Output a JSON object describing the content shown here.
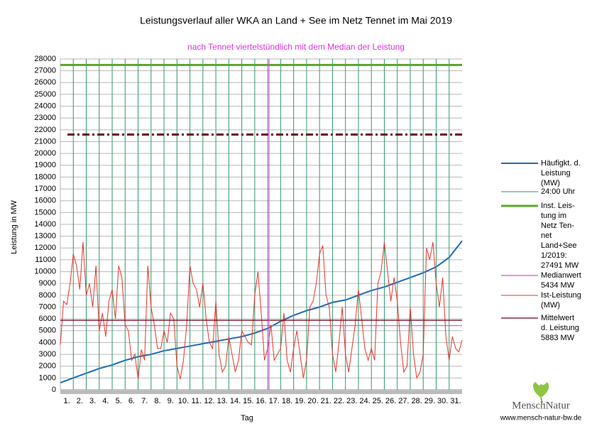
{
  "chart_data": {
    "type": "line",
    "title": "Leistungsverlauf aller WKA an Land + See im Netz Tennet im Mai 2019",
    "subtitle": "nach Tennet viertelstündlich mit dem Median der Leistung",
    "x_label": "Tag",
    "y_label": "Leistung in MW",
    "xlim": [
      0,
      31
    ],
    "ylim": [
      0,
      28000
    ],
    "yticks": [
      0,
      1000,
      2000,
      3000,
      4000,
      5000,
      6000,
      7000,
      8000,
      9000,
      10000,
      11000,
      12000,
      13000,
      14000,
      15000,
      16000,
      17000,
      18000,
      19000,
      20000,
      21000,
      22000,
      23000,
      24000,
      25000,
      26000,
      27000,
      28000
    ],
    "xticks": [
      {
        "value": 0.5,
        "label": "1."
      },
      {
        "value": 1.5,
        "label": "2."
      },
      {
        "value": 2.5,
        "label": "3."
      },
      {
        "value": 3.5,
        "label": "4."
      },
      {
        "value": 4.5,
        "label": "5."
      },
      {
        "value": 5.5,
        "label": "6."
      },
      {
        "value": 6.5,
        "label": "7."
      },
      {
        "value": 7.5,
        "label": "8."
      },
      {
        "value": 8.5,
        "label": "9."
      },
      {
        "value": 9.5,
        "label": "10."
      },
      {
        "value": 10.5,
        "label": "11."
      },
      {
        "value": 11.5,
        "label": "12."
      },
      {
        "value": 12.5,
        "label": "13."
      },
      {
        "value": 13.5,
        "label": "14."
      },
      {
        "value": 14.5,
        "label": "15."
      },
      {
        "value": 15.5,
        "label": "16."
      },
      {
        "value": 16.5,
        "label": "17."
      },
      {
        "value": 17.5,
        "label": "18."
      },
      {
        "value": 18.5,
        "label": "19."
      },
      {
        "value": 19.5,
        "label": "20."
      },
      {
        "value": 20.5,
        "label": "21."
      },
      {
        "value": 21.5,
        "label": "22."
      },
      {
        "value": 22.5,
        "label": "23."
      },
      {
        "value": 23.5,
        "label": "24."
      },
      {
        "value": 24.5,
        "label": "25."
      },
      {
        "value": 25.5,
        "label": "26."
      },
      {
        "value": 26.5,
        "label": "27."
      },
      {
        "value": 27.5,
        "label": "28."
      },
      {
        "value": 28.5,
        "label": "29."
      },
      {
        "value": 29.5,
        "label": "30."
      },
      {
        "value": 30.5,
        "label": "31."
      }
    ],
    "grid": true,
    "x": [
      0,
      0.25,
      0.5,
      0.75,
      1,
      1.25,
      1.5,
      1.75,
      2,
      2.25,
      2.5,
      2.75,
      3,
      3.25,
      3.5,
      3.75,
      4,
      4.25,
      4.5,
      4.75,
      5,
      5.25,
      5.5,
      5.75,
      6,
      6.25,
      6.5,
      6.75,
      7,
      7.25,
      7.5,
      7.75,
      8,
      8.25,
      8.5,
      8.75,
      9,
      9.25,
      9.5,
      9.75,
      10,
      10.25,
      10.5,
      10.75,
      11,
      11.25,
      11.5,
      11.75,
      12,
      12.25,
      12.5,
      12.75,
      13,
      13.25,
      13.5,
      13.75,
      14,
      14.25,
      14.5,
      14.75,
      15,
      15.25,
      15.5,
      15.75,
      16,
      16.25,
      16.5,
      16.75,
      17,
      17.25,
      17.5,
      17.75,
      18,
      18.25,
      18.5,
      18.75,
      19,
      19.25,
      19.5,
      19.75,
      20,
      20.25,
      20.5,
      20.75,
      21,
      21.25,
      21.5,
      21.75,
      22,
      22.25,
      22.5,
      22.75,
      23,
      23.25,
      23.5,
      23.75,
      24,
      24.25,
      24.5,
      24.75,
      25,
      25.25,
      25.5,
      25.75,
      26,
      26.25,
      26.5,
      26.75,
      27,
      27.25,
      27.5,
      27.75,
      28,
      28.25,
      28.5,
      28.75,
      29,
      29.25,
      29.5,
      29.75,
      30,
      30.25,
      30.5,
      30.75,
      31
    ],
    "series": [
      {
        "name": [
          "Häufigkt. d.",
          "Leistung",
          "(MW)"
        ],
        "color": "#1c6bb8",
        "x": [
          0,
          1,
          2,
          3,
          4,
          5,
          6,
          7,
          8,
          9,
          10,
          11,
          12,
          13,
          14,
          15,
          16,
          17,
          18,
          19,
          20,
          21,
          22,
          23,
          24,
          25,
          26,
          27,
          28,
          29,
          30,
          31
        ],
        "values": [
          600,
          1000,
          1400,
          1800,
          2100,
          2500,
          2800,
          3000,
          3300,
          3500,
          3700,
          3900,
          4100,
          4300,
          4500,
          4800,
          5200,
          5800,
          6300,
          6700,
          7000,
          7400,
          7600,
          8000,
          8400,
          8700,
          9100,
          9500,
          9900,
          10400,
          11200,
          12600
        ]
      },
      {
        "name": [
          "24:00 Uhr"
        ],
        "color": "#2f9a6b",
        "vlines": [
          1,
          2,
          3,
          4,
          5,
          6,
          7,
          8,
          9,
          10,
          11,
          12,
          13,
          14,
          15,
          16,
          17,
          18,
          19,
          20,
          21,
          22,
          23,
          24,
          25,
          26,
          27,
          28,
          29,
          30
        ]
      },
      {
        "name": [
          "Inst. Leis-",
          "tung im",
          "Netz Ten-",
          "net",
          "Land+See",
          "1/2019:",
          "27491 MW"
        ],
        "color": "#5ea82a",
        "hline": 27491
      },
      {
        "name": [
          "Medianwert",
          "5434 MW"
        ],
        "color": "#ee44ee",
        "hline": 5434
      },
      {
        "name": [
          "Ist-Leistung",
          "(MW)"
        ],
        "color": "#e8342a",
        "values": [
          3800,
          7500,
          7200,
          9000,
          11500,
          10500,
          8500,
          12500,
          8000,
          9000,
          7000,
          10500,
          5000,
          6500,
          4500,
          7500,
          8500,
          6000,
          10500,
          9500,
          5500,
          5000,
          2500,
          3000,
          900,
          3400,
          2500,
          10500,
          7000,
          5500,
          3500,
          3500,
          5000,
          4000,
          6500,
          6000,
          2000,
          900,
          2500,
          5500,
          10500,
          9000,
          8500,
          7000,
          9000,
          6000,
          4000,
          3500,
          7500,
          3000,
          1500,
          2000,
          4500,
          3000,
          1500,
          2500,
          5000,
          4500,
          4000,
          3800,
          8000,
          10000,
          6500,
          2500,
          3500,
          5500,
          2500,
          3000,
          3500,
          6500,
          2500,
          1500,
          3500,
          5000,
          3000,
          1000,
          2500,
          7000,
          7500,
          9000,
          11500,
          12200,
          8000,
          7000,
          3000,
          1500,
          4000,
          7000,
          3000,
          1500,
          3500,
          5500,
          8500,
          6000,
          3500,
          2500,
          3500,
          2500,
          9000,
          10000,
          12500,
          10000,
          7500,
          9500,
          7500,
          4000,
          1500,
          2000,
          7000,
          3000,
          1000,
          1500,
          3000,
          12000,
          11000,
          12500,
          9000,
          7000,
          9500,
          4500,
          2500,
          4500,
          3500,
          3200,
          4200
        ]
      },
      {
        "name": [
          "Mittelwert",
          "d. Leistung",
          "5883 MW"
        ],
        "color": "#70001c",
        "hline": 5883
      }
    ],
    "extra_lines": [
      {
        "y": 21600,
        "color": "#70001c",
        "dash": true
      },
      {
        "x": 16.1,
        "color": "#ee44ee"
      }
    ],
    "logo": "MenschNatur",
    "website": "www.mensch-natur-bw.de"
  }
}
